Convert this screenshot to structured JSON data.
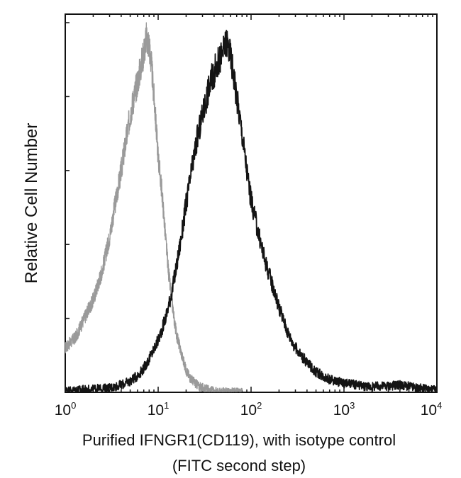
{
  "chart_data": {
    "type": "line",
    "xscale": "log",
    "xlim": [
      1,
      10000
    ],
    "ylim": [
      0,
      100
    ],
    "xticks": [
      {
        "base": "10",
        "exp": "0",
        "value": 1
      },
      {
        "base": "10",
        "exp": "1",
        "value": 10
      },
      {
        "base": "10",
        "exp": "2",
        "value": 100
      },
      {
        "base": "10",
        "exp": "3",
        "value": 1000
      },
      {
        "base": "10",
        "exp": "4",
        "value": 10000
      }
    ],
    "xlabel_line1": "Purified IFNGR1(CD119), with isotype control",
    "xlabel_line2": "(FITC second step)",
    "ylabel": "Relative Cell Number",
    "grid": false,
    "series": [
      {
        "color": "#9a9a9a",
        "x": [
          1.0,
          1.3,
          1.6,
          2.0,
          2.5,
          3.0,
          3.5,
          4.0,
          4.5,
          5.0,
          5.5,
          6.0,
          6.5,
          7.0,
          7.5,
          8.0,
          8.5,
          9.0,
          9.5,
          10.0,
          11.0,
          12.0,
          13.0,
          14.0,
          15.0,
          16.0,
          18.0,
          20.0,
          22.0,
          25.0,
          28.0,
          32.0,
          36.0,
          40.0,
          50.0,
          60.0,
          80.0
        ],
        "y": [
          12.0,
          15.0,
          20.0,
          25.0,
          33.0,
          42.0,
          52.0,
          60.0,
          68.0,
          75.0,
          80.0,
          84.0,
          88.0,
          92.0,
          96.0,
          94.0,
          88.0,
          80.0,
          72.0,
          64.0,
          54.0,
          42.0,
          32.0,
          25.0,
          19.0,
          15.0,
          10.0,
          6.0,
          4.0,
          2.5,
          1.5,
          1.0,
          0.6,
          0.3,
          0.1,
          0.0,
          0.0
        ]
      },
      {
        "color": "#141414",
        "x": [
          1.0,
          2.0,
          3.0,
          4.0,
          5.0,
          6.0,
          7.0,
          8.0,
          10.0,
          12.0,
          14.0,
          16.0,
          18.0,
          20.0,
          23.0,
          26.0,
          30.0,
          34.0,
          38.0,
          42.0,
          46.0,
          50.0,
          55.0,
          60.0,
          65.0,
          70.0,
          80.0,
          90.0,
          100.0,
          120.0,
          140.0,
          170.0,
          200.0,
          250.0,
          300.0,
          400.0,
          500.0,
          700.0,
          1000.0,
          1500.0,
          2000.0,
          3000.0,
          4000.0,
          6000.0,
          10000.0
        ],
        "y": [
          0.5,
          0.8,
          1.2,
          2.0,
          3.0,
          4.5,
          6.5,
          9.0,
          14.0,
          20.0,
          27.0,
          35.0,
          43.0,
          51.0,
          60.0,
          68.0,
          75.0,
          81.0,
          85.0,
          88.0,
          90.0,
          92.0,
          95.0,
          91.0,
          86.0,
          80.0,
          70.0,
          60.0,
          52.0,
          43.0,
          36.0,
          29.0,
          23.0,
          16.0,
          12.0,
          8.0,
          5.5,
          3.5,
          2.5,
          1.8,
          1.5,
          1.8,
          2.0,
          1.2,
          0.5
        ]
      }
    ]
  }
}
